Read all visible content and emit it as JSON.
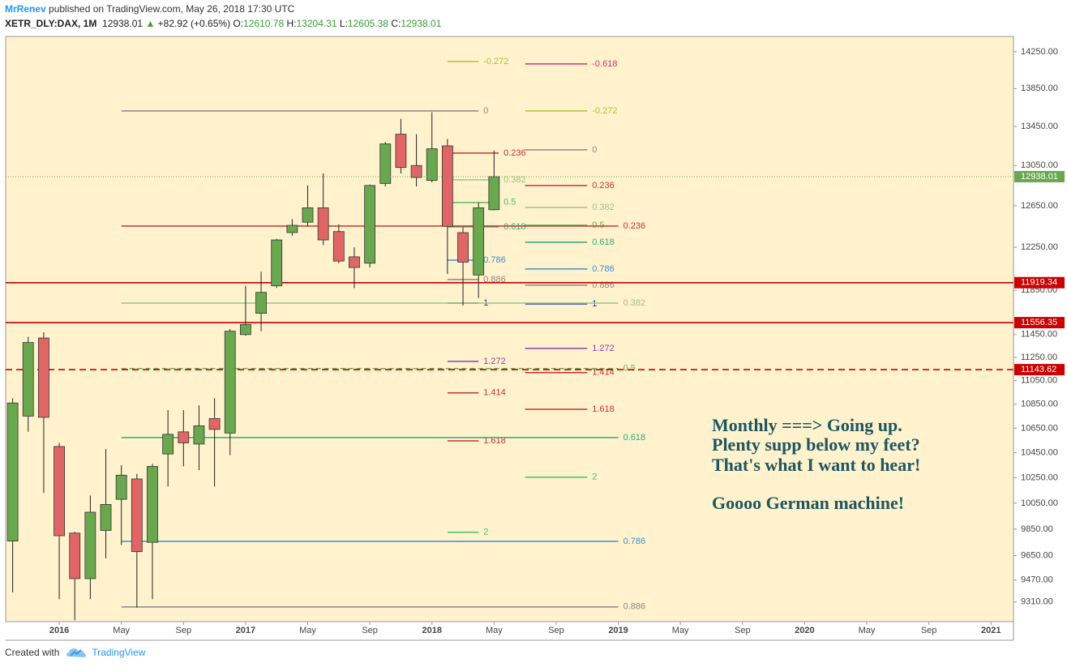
{
  "header": {
    "author": "MrRenev",
    "published": "published on TradingView.com, May 26, 2018 17:30 UTC",
    "symbol": "XETR_DLY:DAX, 1M",
    "arrow": "▲",
    "change": "+82.92 (+0.65%)",
    "o_label": "O:",
    "h_label": "H:",
    "l_label": "L:",
    "c_label": "C:"
  },
  "footer": {
    "created": "Created with",
    "brand": "TradingView"
  },
  "chart_data": {
    "type": "candlestick",
    "x": [
      -3,
      -2,
      -1,
      0,
      1,
      2,
      3,
      4,
      5,
      6,
      7,
      8,
      9,
      10,
      11,
      12,
      13,
      14,
      15,
      16,
      17,
      18,
      19,
      20,
      21,
      22,
      23,
      24,
      25,
      26,
      27,
      28
    ],
    "open": [
      9760,
      10750,
      11420,
      10500,
      9820,
      9480,
      9840,
      10080,
      10240,
      9750,
      10440,
      10620,
      10520,
      10730,
      10610,
      11450,
      11640,
      11890,
      12390,
      12490,
      12630,
      12400,
      12160,
      12100,
      12870,
      13370,
      13050,
      12900,
      13250,
      12390,
      11990,
      12610.78
    ],
    "high": [
      10900,
      11430,
      11470,
      10530,
      9830,
      10110,
      10480,
      10350,
      10280,
      10360,
      10800,
      10800,
      10840,
      10900,
      11500,
      11890,
      12020,
      12330,
      12520,
      12850,
      12970,
      12470,
      12250,
      12860,
      13290,
      13530,
      13370,
      13600,
      13320,
      12440,
      12680,
      13204.31
    ],
    "low": [
      9380,
      10620,
      10130,
      9330,
      9180,
      9330,
      9630,
      9730,
      9270,
      9330,
      10180,
      10340,
      10310,
      10180,
      10430,
      11440,
      11480,
      11870,
      12360,
      12450,
      12270,
      12100,
      11870,
      12060,
      12840,
      12970,
      12840,
      12880,
      12000,
      11710,
      11780,
      12605.38
    ],
    "close": [
      10860,
      11380,
      10740,
      9800,
      9480,
      9980,
      10040,
      10270,
      9680,
      10340,
      10600,
      10530,
      10670,
      10640,
      11480,
      11540,
      11830,
      12320,
      12460,
      12630,
      12320,
      12120,
      12060,
      12850,
      13270,
      13030,
      12930,
      13220,
      12450,
      12110,
      12630,
      12938.01
    ],
    "up_color": "#6aa84f",
    "down_color": "#e06666",
    "log": true,
    "ylim": [
      9170,
      14420
    ],
    "yticks": [
      {
        "value": 14250,
        "label": "14250.00"
      },
      {
        "value": 13850,
        "label": "13850.00"
      },
      {
        "value": 13450,
        "label": "13450.00"
      },
      {
        "value": 13050,
        "label": "13050.00"
      },
      {
        "value": 12650,
        "label": "12650.00"
      },
      {
        "value": 12250,
        "label": "12250.00"
      },
      {
        "value": 11850,
        "label": "11850.00"
      },
      {
        "value": 11450,
        "label": "11450.00"
      },
      {
        "value": 11250,
        "label": "11250.00"
      },
      {
        "value": 11050,
        "label": "11050.00"
      },
      {
        "value": 10850,
        "label": "10850.00"
      },
      {
        "value": 10650,
        "label": "10650.00"
      },
      {
        "value": 10450,
        "label": "10450.00"
      },
      {
        "value": 10250,
        "label": "10250.00"
      },
      {
        "value": 10050,
        "label": "10050.00"
      },
      {
        "value": 9850,
        "label": "9850.00"
      },
      {
        "value": 9650,
        "label": "9650.00"
      },
      {
        "value": 9470,
        "label": "9470.00"
      },
      {
        "value": 9310,
        "label": "9310.00"
      }
    ],
    "xlim": [
      -3.45,
      61.45
    ],
    "xticks": [
      {
        "value": 0,
        "label": "2016"
      },
      {
        "value": 4,
        "label": "May"
      },
      {
        "value": 8,
        "label": "Sep"
      },
      {
        "value": 12,
        "label": "2017"
      },
      {
        "value": 16,
        "label": "May"
      },
      {
        "value": 20,
        "label": "Sep"
      },
      {
        "value": 24,
        "label": "2018"
      },
      {
        "value": 28,
        "label": "May"
      },
      {
        "value": 32,
        "label": "Sep"
      },
      {
        "value": 36,
        "label": "2019"
      },
      {
        "value": 40,
        "label": "May"
      },
      {
        "value": 44,
        "label": "Sep"
      },
      {
        "value": 48,
        "label": "2020"
      },
      {
        "value": 52,
        "label": "May"
      },
      {
        "value": 56,
        "label": "Sep"
      },
      {
        "value": 60,
        "label": "2021"
      }
    ],
    "levels": [
      {
        "label": "-0.272",
        "value": 14143,
        "color": "#a4c639",
        "from": 25,
        "to": 27
      },
      {
        "label": "0",
        "value": 13613,
        "color": "#888888",
        "from": 4,
        "to": 27
      },
      {
        "label": "0.236",
        "value": 13176,
        "color": "#cc3333",
        "from": 25,
        "to": 28.3
      },
      {
        "label": "0.382",
        "value": 12906,
        "color": "#98c48a",
        "from": 25,
        "to": 28.3
      },
      {
        "label": "0.5",
        "value": 12682,
        "color": "#5cb85c",
        "from": 25,
        "to": 28.3
      },
      {
        "label": "0.618",
        "value": 12445,
        "color": "#27ae7a",
        "from": 25,
        "to": 28.3
      },
      {
        "label": "0.786",
        "value": 12129,
        "color": "#3d8fd1",
        "from": 25,
        "to": 27
      },
      {
        "label": "0.886",
        "value": 11948,
        "color": "#888888",
        "from": 25,
        "to": 27
      },
      {
        "label": "1",
        "value": 11732,
        "color": "#2a3fa0",
        "from": 25,
        "to": 27
      },
      {
        "label": "1.272",
        "value": 11215,
        "color": "#8e44ad",
        "from": 25,
        "to": 27
      },
      {
        "label": "1.414",
        "value": 10945,
        "color": "#cc3333",
        "from": 25,
        "to": 27
      },
      {
        "label": "1.618",
        "value": 10546,
        "color": "#cc3333",
        "from": 25,
        "to": 27
      },
      {
        "label": "2",
        "value": 9826,
        "color": "#3cc46a",
        "from": 25,
        "to": 27
      },
      {
        "label": "-0.618",
        "value": 14117,
        "color": "#d6336c",
        "from": 30,
        "to": 34
      },
      {
        "label": "-0.272",
        "value": 13613,
        "color": "#a4c639",
        "from": 30,
        "to": 34
      },
      {
        "label": "0",
        "value": 13209,
        "color": "#888888",
        "from": 30,
        "to": 34
      },
      {
        "label": "0.236",
        "value": 12850,
        "color": "#cc3333",
        "from": 30,
        "to": 34
      },
      {
        "label": "0.382",
        "value": 12634,
        "color": "#98c48a",
        "from": 30,
        "to": 34
      },
      {
        "label": "0.5",
        "value": 12461,
        "color": "#5cb85c",
        "from": 30,
        "to": 34
      },
      {
        "label": "0.618",
        "value": 12298,
        "color": "#27ae7a",
        "from": 30,
        "to": 34
      },
      {
        "label": "0.786",
        "value": 12046,
        "color": "#3d8fd1",
        "from": 30,
        "to": 34
      },
      {
        "label": "0.886",
        "value": 11896,
        "color": "#888888",
        "from": 30,
        "to": 34
      },
      {
        "label": "1",
        "value": 11725,
        "color": "#2a3fa0",
        "from": 30,
        "to": 34
      },
      {
        "label": "1.272",
        "value": 11328,
        "color": "#8e44ad",
        "from": 30,
        "to": 34
      },
      {
        "label": "1.414",
        "value": 11118,
        "color": "#cc3333",
        "from": 30,
        "to": 34
      },
      {
        "label": "1.618",
        "value": 10807,
        "color": "#cc3333",
        "from": 30,
        "to": 34
      },
      {
        "label": "2",
        "value": 10254,
        "color": "#3cc46a",
        "from": 30,
        "to": 34
      },
      {
        "label": "0.236",
        "value": 12453,
        "color": "#cc3333",
        "from": 4,
        "to": 36
      },
      {
        "label": "0.382",
        "value": 11732,
        "color": "#98c48a",
        "from": 4,
        "to": 36
      },
      {
        "label": "0.5",
        "value": 11153,
        "color": "#5cb85c",
        "from": 4,
        "to": 36,
        "dashed": true
      },
      {
        "label": "0.618",
        "value": 10573,
        "color": "#27ae7a",
        "from": 4,
        "to": 36
      },
      {
        "label": "0.786",
        "value": 9757,
        "color": "#3d8fd1",
        "from": 4,
        "to": 36
      },
      {
        "label": "0.886",
        "value": 9275,
        "color": "#888888",
        "from": 4,
        "to": 36
      }
    ],
    "hlines": [
      {
        "value": 11919.34,
        "color": "#cc0000"
      },
      {
        "value": 11556.35,
        "color": "#cc0000"
      },
      {
        "value": 11143.62,
        "color": "#cc0000",
        "dashed": true
      }
    ],
    "last_color": "#6aa84f",
    "annotation": [
      "Monthly ===> Going up.",
      "Plenty supp below my feet?",
      "That's what I want to hear!",
      "Goooo German machine!"
    ]
  }
}
